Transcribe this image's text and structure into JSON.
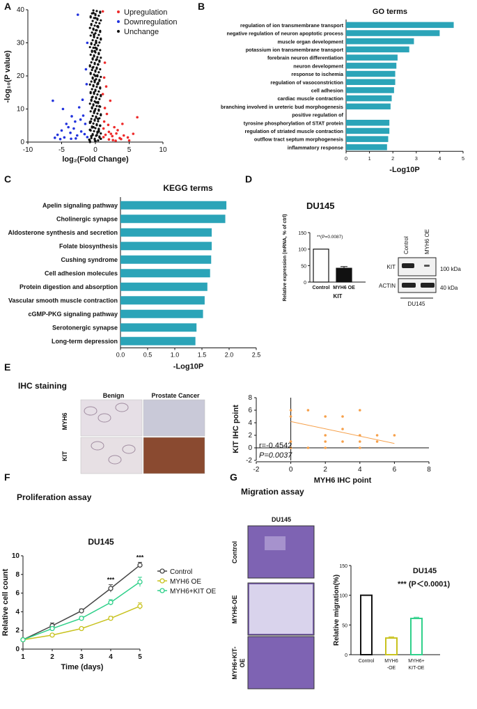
{
  "panel_labels": {
    "a": "A",
    "b": "B",
    "c": "C",
    "d": "D",
    "e": "E",
    "f": "F",
    "g": "G"
  },
  "colors": {
    "teal": "#2ba4b8",
    "up": "#ee2b2b",
    "down": "#2233dd",
    "unchange": "#111111",
    "scatter": "#f6a04a",
    "yellow": "#c8c21e",
    "green": "#2fd08a",
    "gray": "#444444"
  },
  "chart_data": [
    {
      "id": "volcano",
      "type": "scatter",
      "xlabel": "log₂(Fold Change)",
      "ylabel": "-log₁₀(P value)",
      "xlim": [
        -10,
        10
      ],
      "ylim": [
        0,
        40
      ],
      "xticks": [
        "-10",
        "-5",
        "0",
        "5",
        "10"
      ],
      "yticks": [
        "0",
        "10",
        "20",
        "30",
        "40"
      ],
      "legend": [
        "Upregulation",
        "Downregulation",
        "Unchange"
      ],
      "series": [
        {
          "name": "Upregulation",
          "points": [
            [
              1.2,
              1.5
            ],
            [
              1.5,
              2.2
            ],
            [
              2.0,
              3.1
            ],
            [
              2.5,
              1.8
            ],
            [
              3.1,
              2.6
            ],
            [
              3.6,
              1.2
            ],
            [
              4.2,
              2.0
            ],
            [
              4.8,
              1.4
            ],
            [
              5.6,
              2.5
            ],
            [
              6.2,
              7.5
            ],
            [
              1.3,
              6.2
            ],
            [
              1.7,
              8.5
            ],
            [
              2.2,
              12.5
            ],
            [
              1.4,
              10.3
            ],
            [
              2.8,
              4.5
            ],
            [
              3.3,
              3.6
            ],
            [
              4.0,
              5.5
            ],
            [
              1.1,
              14.5
            ],
            [
              1.6,
              16.8
            ],
            [
              2.0,
              0.8
            ],
            [
              2.6,
              0.6
            ],
            [
              3.8,
              0.9
            ],
            [
              5.0,
              0.5
            ],
            [
              1.2,
              4.1
            ],
            [
              1.9,
              5.2
            ],
            [
              1.4,
              24.0
            ],
            [
              1.1,
              39.5
            ],
            [
              1.3,
              19.5
            ],
            [
              3.0,
              0.4
            ],
            [
              2.3,
              2.5
            ]
          ]
        },
        {
          "name": "Downregulation",
          "points": [
            [
              -1.2,
              1.5
            ],
            [
              -1.6,
              2.4
            ],
            [
              -2.1,
              3.2
            ],
            [
              -2.7,
              2.0
            ],
            [
              -3.2,
              4.1
            ],
            [
              -3.7,
              2.8
            ],
            [
              -4.3,
              5.5
            ],
            [
              -5.0,
              3.5
            ],
            [
              -5.6,
              2.2
            ],
            [
              -6.3,
              12.5
            ],
            [
              -4.8,
              10.0
            ],
            [
              -3.5,
              7.8
            ],
            [
              -2.4,
              10.5
            ],
            [
              -1.9,
              12.8
            ],
            [
              -1.4,
              22.0
            ],
            [
              -1.2,
              30.0
            ],
            [
              -2.6,
              38.5
            ],
            [
              -1.8,
              8.0
            ],
            [
              -3.0,
              6.2
            ],
            [
              -4.0,
              4.5
            ],
            [
              -4.6,
              1.4
            ],
            [
              -5.2,
              0.9
            ],
            [
              -3.6,
              1.0
            ],
            [
              -1.5,
              5.5
            ],
            [
              -2.2,
              6.8
            ],
            [
              -1.3,
              17.5
            ],
            [
              -6.0,
              1.3
            ],
            [
              -2.9,
              1.1
            ]
          ]
        },
        {
          "name": "Unchange",
          "points": [
            [
              0.0,
              0.3
            ],
            [
              0.2,
              2.1
            ],
            [
              -0.3,
              4.5
            ],
            [
              0.4,
              7.0
            ],
            [
              -0.1,
              9.5
            ],
            [
              0.1,
              12.0
            ],
            [
              -0.2,
              15.0
            ],
            [
              0.3,
              17.5
            ],
            [
              0.0,
              20.0
            ],
            [
              -0.4,
              22.5
            ],
            [
              0.2,
              25.0
            ],
            [
              -0.1,
              27.5
            ],
            [
              0.1,
              30.0
            ],
            [
              -0.2,
              32.5
            ],
            [
              0.3,
              35.0
            ],
            [
              0.0,
              37.5
            ],
            [
              -0.3,
              39.0
            ],
            [
              0.5,
              3.2
            ],
            [
              -0.6,
              1.8
            ],
            [
              0.7,
              5.0
            ],
            [
              -0.8,
              3.7
            ],
            [
              0.6,
              10.8
            ],
            [
              -0.5,
              13.5
            ],
            [
              0.4,
              23.5
            ],
            [
              -0.7,
              6.2
            ],
            [
              0.8,
              1.0
            ],
            [
              -0.9,
              0.7
            ],
            [
              0.1,
              33.8
            ],
            [
              -0.1,
              18.6
            ],
            [
              0.0,
              28.5
            ]
          ]
        }
      ]
    },
    {
      "id": "go",
      "type": "bar",
      "title": "GO terms",
      "xlabel": "-Log10P",
      "xlim": [
        0,
        5
      ],
      "xticks": [
        "0",
        "1",
        "2",
        "3",
        "4",
        "5"
      ],
      "categories": [
        "regulation of ion transmembrane transport",
        "negative regulation of neuron apoptotic process",
        "muscle organ development",
        "potassium ion transmembrane transport",
        "forebrain neuron differentiation",
        "neuron development",
        "response to ischemia",
        "regulation of vasoconstriction",
        "cell adhesion",
        "cardiac muscle contraction",
        "branching involved in ureteric bud morphogenesis",
        "positive regulation of",
        "tyrosine phosphorylation of STAT protein",
        "regulation of striated muscle contraction",
        "outflow tract septum morphogenesis",
        "inflammatory response"
      ],
      "values": [
        4.6,
        4.0,
        2.9,
        2.7,
        2.2,
        2.15,
        2.1,
        2.1,
        2.05,
        1.95,
        1.9,
        null,
        1.85,
        1.85,
        1.8,
        1.75
      ]
    },
    {
      "id": "kegg",
      "type": "bar",
      "title": "KEGG terms",
      "xlabel": "-Log10P",
      "xlim": [
        0,
        2.5
      ],
      "xticks": [
        "0.0",
        "0.5",
        "1.0",
        "1.5",
        "2.0",
        "2.5"
      ],
      "categories": [
        "Apelin signaling pathway",
        "Cholinergic synapse",
        "Aldosterone synthesis and secretion",
        "Folate biosynthesis",
        "Cushing syndrome",
        "Cell adhesion molecules",
        "Protein digestion and absorption",
        "Vascular smooth muscle contraction",
        "cGMP-PKG signaling pathway",
        "Serotonergic synapse",
        "Long-term depression"
      ],
      "values": [
        1.95,
        1.93,
        1.68,
        1.68,
        1.67,
        1.65,
        1.6,
        1.55,
        1.52,
        1.4,
        1.38
      ]
    },
    {
      "id": "d-bar",
      "type": "bar",
      "title": "DU145",
      "ylabel": "Relative expression (mRNA, % of ctrl)",
      "ylim": [
        0,
        150
      ],
      "yticks": [
        "0",
        "50",
        "100",
        "150"
      ],
      "categories": [
        "Control",
        "MYH6 OE"
      ],
      "values": [
        100,
        42
      ],
      "errors": [
        0,
        5
      ],
      "group_label": "KIT",
      "annotation": "**(P=0.0087)"
    },
    {
      "id": "ihc-scatter",
      "type": "scatter",
      "xlabel": "MYH6 IHC point",
      "ylabel": "KIT IHC point",
      "xlim": [
        -2,
        8
      ],
      "ylim": [
        -2,
        8
      ],
      "xticks": [
        "-2",
        "0",
        "2",
        "4",
        "6",
        "8"
      ],
      "yticks": [
        "-2",
        "0",
        "2",
        "4",
        "6",
        "8"
      ],
      "points": [
        [
          0,
          6
        ],
        [
          0,
          5
        ],
        [
          0,
          1
        ],
        [
          0,
          0
        ],
        [
          1,
          6
        ],
        [
          2,
          5
        ],
        [
          2,
          2
        ],
        [
          2,
          1
        ],
        [
          2,
          0
        ],
        [
          3,
          5
        ],
        [
          3,
          3
        ],
        [
          3,
          1
        ],
        [
          4,
          6
        ],
        [
          4,
          2
        ],
        [
          4,
          1
        ],
        [
          4,
          0
        ],
        [
          5,
          2
        ],
        [
          5,
          1
        ],
        [
          6,
          2
        ],
        [
          1,
          0
        ]
      ],
      "fit": {
        "x": [
          0,
          6
        ],
        "y": [
          4.2,
          0.7
        ]
      },
      "r_text": "r=-0.4542",
      "p_text": "P=0.0037"
    },
    {
      "id": "proliferation",
      "type": "line",
      "title": "DU145",
      "xlabel": "Time (days)",
      "ylabel": "Relative cell count",
      "xlim": [
        1,
        5
      ],
      "ylim": [
        0,
        10
      ],
      "xticks": [
        "1",
        "2",
        "3",
        "4",
        "5"
      ],
      "yticks": [
        "0",
        "2",
        "4",
        "6",
        "8",
        "10"
      ],
      "x": [
        1,
        2,
        3,
        4,
        5
      ],
      "series": [
        {
          "name": "Control",
          "values": [
            1.0,
            2.5,
            4.1,
            6.5,
            9.0
          ],
          "errors": [
            0.1,
            0.3,
            0.2,
            0.4,
            0.3
          ]
        },
        {
          "name": "MYH6 OE",
          "values": [
            1.0,
            1.5,
            2.2,
            3.3,
            4.6
          ],
          "errors": [
            0.1,
            0.15,
            0.15,
            0.2,
            0.35
          ]
        },
        {
          "name": "MYH6+KIT OE",
          "values": [
            1.0,
            2.2,
            3.3,
            5.0,
            7.2
          ],
          "errors": [
            0.1,
            0.2,
            0.2,
            0.3,
            0.5
          ]
        }
      ],
      "annotations": [
        "***",
        "***"
      ]
    },
    {
      "id": "migration",
      "type": "bar",
      "title": "DU145",
      "ylabel": "Relative migration(%)",
      "ylim": [
        0,
        150
      ],
      "yticks": [
        "0",
        "50",
        "100",
        "150"
      ],
      "categories": [
        "Control",
        "MYH6\n-OE",
        "MYH6+\nKIT-OE"
      ],
      "values": [
        100,
        28,
        61
      ],
      "errors": [
        0,
        2,
        2
      ],
      "annotation": "*** (P＜0.0001)"
    }
  ],
  "panel_b_title": "GO terms",
  "panel_c_title": "KEGG terms",
  "panel_d": {
    "cell_line": "DU145",
    "blot_cols": [
      "Control",
      "MYH6 OE"
    ],
    "blot_rows": [
      "KIT",
      "ACTIN"
    ],
    "markers": [
      "100 kDa",
      "40 kDa"
    ],
    "blot_label": "DU145"
  },
  "panel_e": {
    "title": "IHC staining",
    "cols": [
      "Benign",
      "Prostate Cancer"
    ],
    "rows": [
      "MYH6",
      "KIT"
    ]
  },
  "panel_f": {
    "title": "Proliferation assay"
  },
  "panel_g": {
    "title": "Migration assay",
    "image_title": "DU145",
    "rows": [
      "Control",
      "MYH6-OE",
      "MYH6+KIT-\nOE"
    ]
  }
}
